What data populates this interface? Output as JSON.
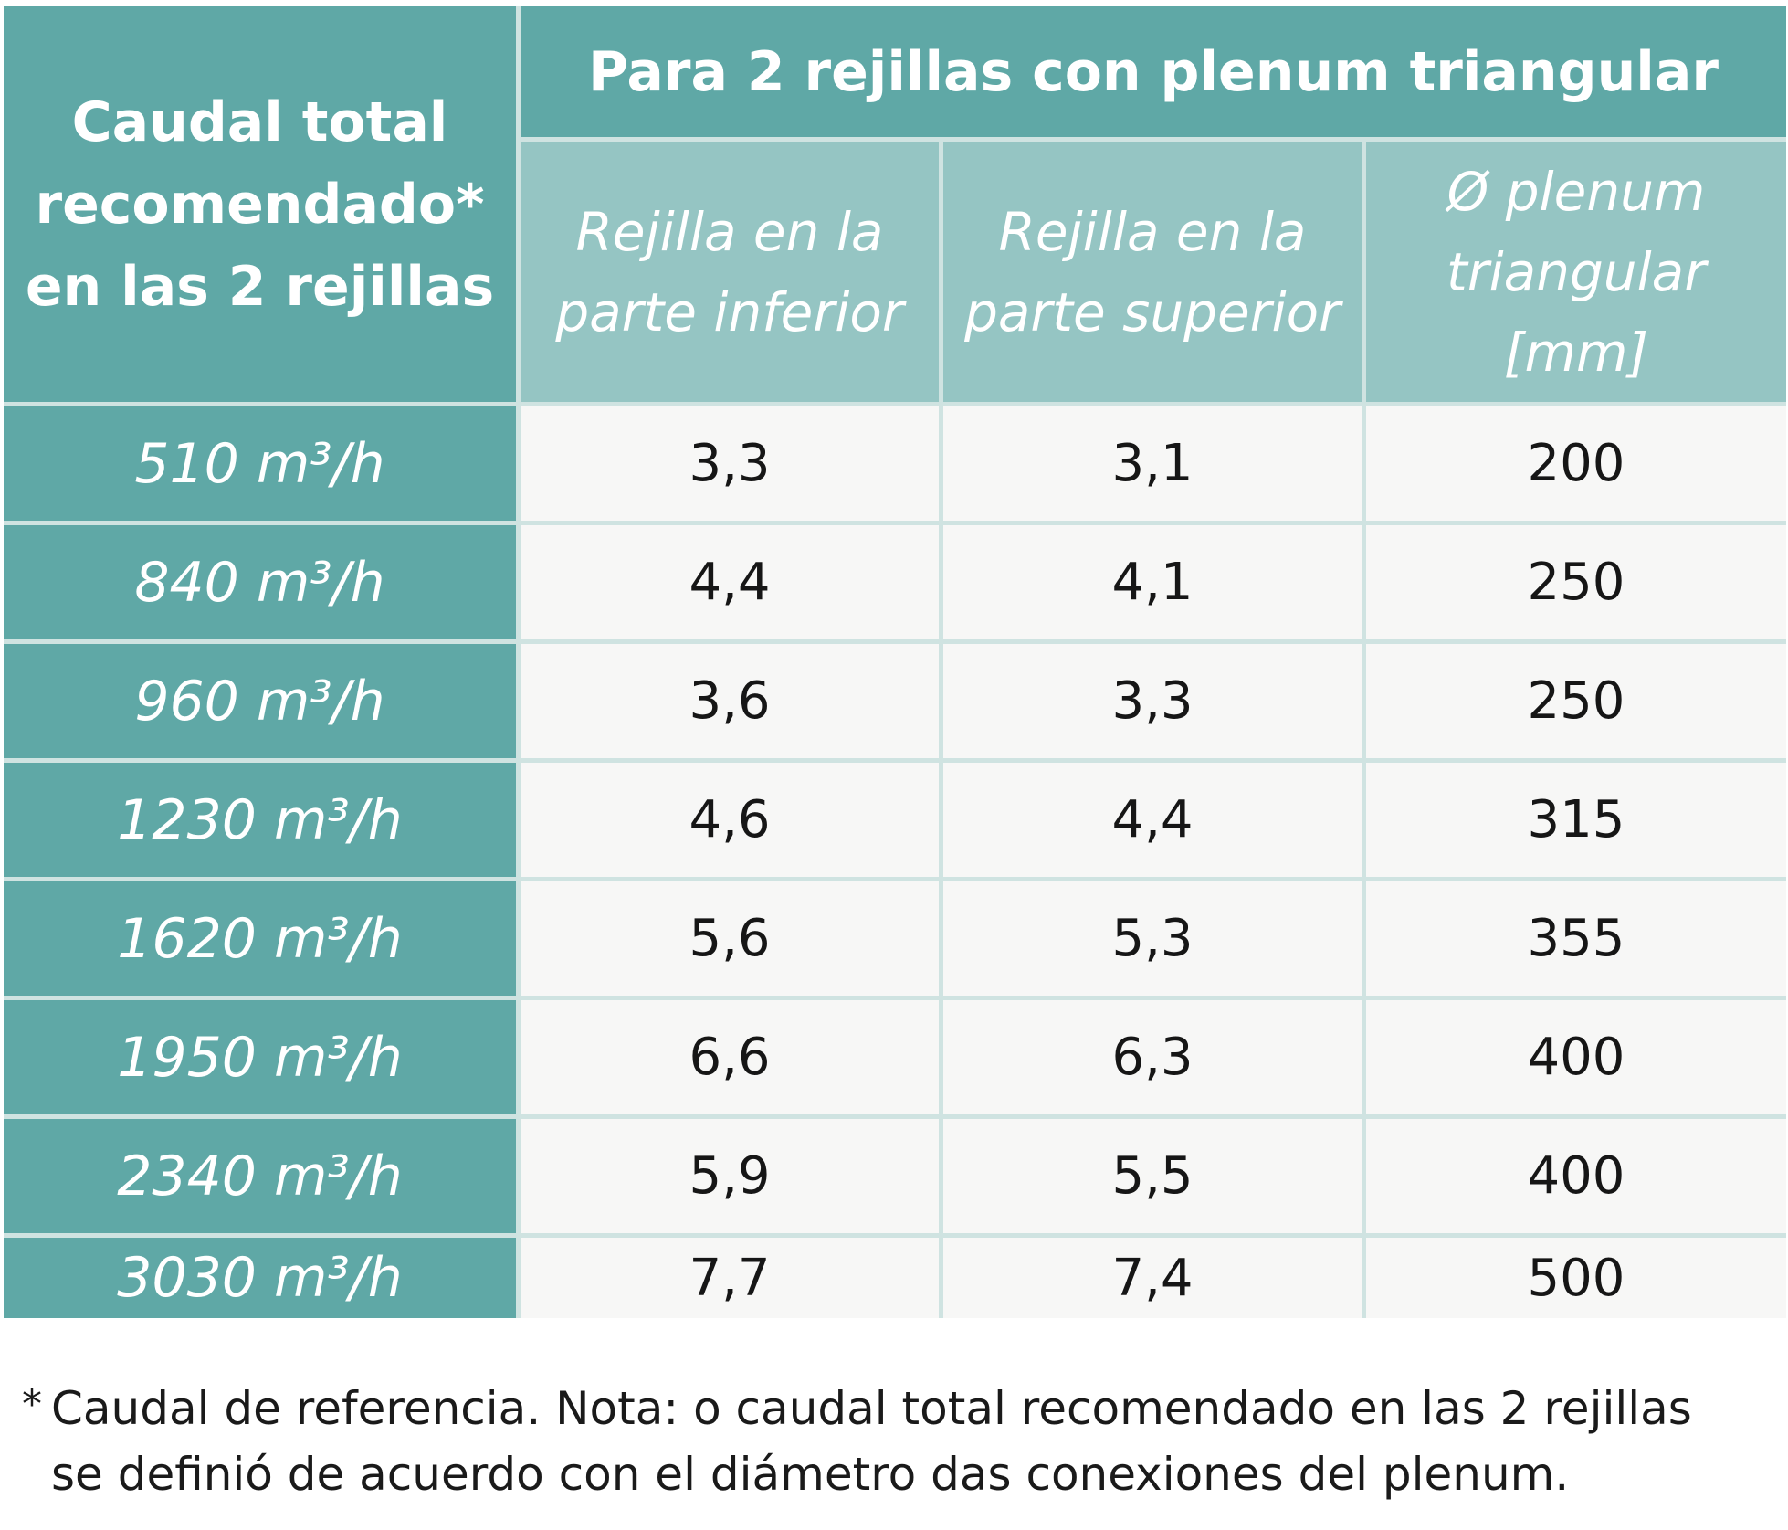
{
  "table": {
    "corner_header": "Caudal total recomendado* en las 2 rejillas",
    "group_header": "Para 2 rejillas con plenum triangular",
    "sub_headers": [
      "Rejilla en la parte inferior",
      "Rejilla en la parte superior",
      "Ø plenum triangular [mm]"
    ],
    "rows": [
      {
        "caudal": "510 m³/h",
        "inferior": "3,3",
        "superior": "3,1",
        "plenum": "200"
      },
      {
        "caudal": "840 m³/h",
        "inferior": "4,4",
        "superior": "4,1",
        "plenum": "250"
      },
      {
        "caudal": "960 m³/h",
        "inferior": "3,6",
        "superior": "3,3",
        "plenum": "250"
      },
      {
        "caudal": "1230 m³/h",
        "inferior": "4,6",
        "superior": "4,4",
        "plenum": "315"
      },
      {
        "caudal": "1620 m³/h",
        "inferior": "5,6",
        "superior": "5,3",
        "plenum": "355"
      },
      {
        "caudal": "1950 m³/h",
        "inferior": "6,6",
        "superior": "6,3",
        "plenum": "400"
      },
      {
        "caudal": "2340 m³/h",
        "inferior": "5,9",
        "superior": "5,5",
        "plenum": "400"
      },
      {
        "caudal": "3030 m³/h",
        "inferior": "7,7",
        "superior": "7,4",
        "plenum": "500"
      }
    ]
  },
  "footnote": {
    "marker": "*",
    "line1": "Caudal de referencia. Nota: o caudal total recomendado en las 2 rejillas",
    "line2": "se definió de acuerdo con el diámetro das conexiones del plenum."
  }
}
